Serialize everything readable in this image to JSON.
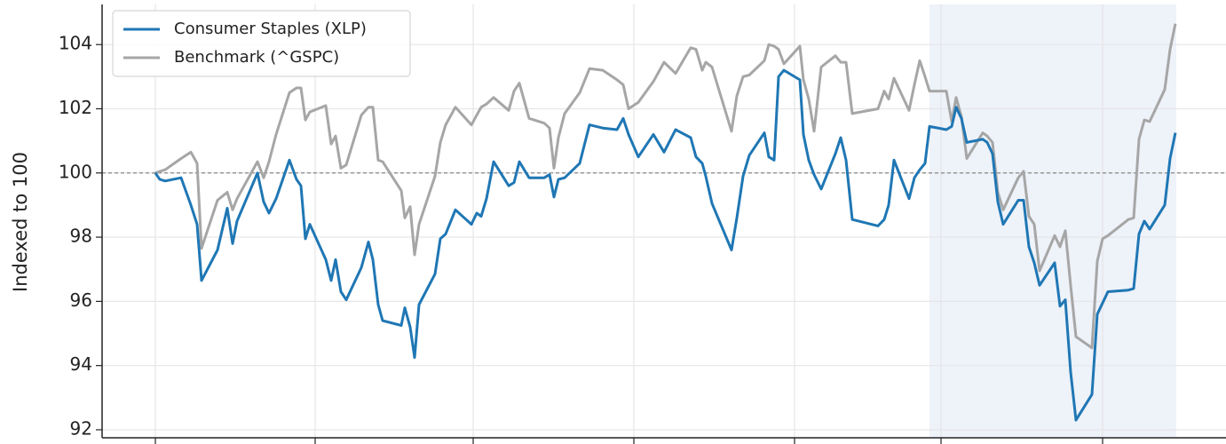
{
  "chart_data": {
    "type": "line",
    "y_label": "Indexed to 100",
    "x": [
      0,
      5,
      11,
      29,
      40,
      47,
      52,
      70,
      81,
      87,
      92,
      115,
      122,
      128,
      136,
      151,
      159,
      164,
      169,
      174,
      192,
      198,
      203,
      209,
      215,
      232,
      240,
      245,
      251,
      256,
      277,
      281,
      287,
      292,
      297,
      315,
      321,
      327,
      338,
      356,
      362,
      367,
      373,
      381,
      398,
      404,
      410,
      421,
      438,
      444,
      449,
      454,
      461,
      478,
      489,
      504,
      520,
      527,
      533,
      544,
      561,
      573,
      586,
      603,
      609,
      616,
      620,
      627,
      649,
      655,
      662,
      669,
      686,
      691,
      697,
      702,
      708,
      726,
      730,
      736,
      742,
      750,
      766,
      772,
      778,
      785,
      814,
      821,
      826,
      832,
      849,
      855,
      861,
      867,
      872,
      891,
      897,
      902,
      908,
      914,
      932,
      937,
      943,
      949,
      955,
      972,
      978,
      984,
      990,
      996,
      1013,
      1019,
      1025,
      1031,
      1037,
      1055,
      1061,
      1067,
      1073,
      1096,
      1102,
      1108,
      1114,
      1120,
      1137,
      1143,
      1149
    ],
    "series": [
      {
        "name": "Consumer Staples (XLP)",
        "color": "#1f77b4",
        "values": [
          100.0,
          99.8,
          99.75,
          99.85,
          99.0,
          98.4,
          96.65,
          97.6,
          98.9,
          97.8,
          98.5,
          100.0,
          99.1,
          98.75,
          99.2,
          100.4,
          99.8,
          99.6,
          97.95,
          98.4,
          97.3,
          96.65,
          97.3,
          96.3,
          96.05,
          97.05,
          97.85,
          97.3,
          95.9,
          95.4,
          95.25,
          95.8,
          95.2,
          94.25,
          95.9,
          96.85,
          97.95,
          98.1,
          98.85,
          98.4,
          98.75,
          98.65,
          99.2,
          100.35,
          99.6,
          99.7,
          100.35,
          99.85,
          99.85,
          99.95,
          99.25,
          99.8,
          99.85,
          100.3,
          101.5,
          101.4,
          101.35,
          101.7,
          101.2,
          100.5,
          101.2,
          100.65,
          101.35,
          101.1,
          100.5,
          100.3,
          99.9,
          99.05,
          97.6,
          98.6,
          99.9,
          100.55,
          101.25,
          100.5,
          100.4,
          103.0,
          103.2,
          102.9,
          101.2,
          100.4,
          99.95,
          99.5,
          100.6,
          101.1,
          100.4,
          98.55,
          98.35,
          98.55,
          99.0,
          100.4,
          99.2,
          99.85,
          100.1,
          100.3,
          101.45,
          101.35,
          101.45,
          102.05,
          101.7,
          100.95,
          101.05,
          100.95,
          100.6,
          99.1,
          98.4,
          99.15,
          99.15,
          97.7,
          97.2,
          96.5,
          97.2,
          95.85,
          96.05,
          93.8,
          92.3,
          93.1,
          95.6,
          95.95,
          96.3,
          96.35,
          96.4,
          98.1,
          98.5,
          98.25,
          99.0,
          100.45,
          101.25
        ]
      },
      {
        "name": "Benchmark (^GSPC)",
        "color": "#a6a6a6",
        "values": [
          100.0,
          100.05,
          100.1,
          100.45,
          100.65,
          100.3,
          97.65,
          99.15,
          99.4,
          98.85,
          99.2,
          100.35,
          99.85,
          100.35,
          101.2,
          102.5,
          102.65,
          102.65,
          101.65,
          101.9,
          102.1,
          100.9,
          101.15,
          100.15,
          100.25,
          101.8,
          102.05,
          102.05,
          100.4,
          100.35,
          99.45,
          98.6,
          98.95,
          97.45,
          98.4,
          99.9,
          100.95,
          101.5,
          102.05,
          101.5,
          101.8,
          102.05,
          102.15,
          102.35,
          101.95,
          102.55,
          102.8,
          101.7,
          101.55,
          101.4,
          100.15,
          101.1,
          101.85,
          102.5,
          103.25,
          103.2,
          102.9,
          102.75,
          102.0,
          102.2,
          102.85,
          103.45,
          103.1,
          103.9,
          103.85,
          103.2,
          103.45,
          103.3,
          101.3,
          102.4,
          103.0,
          103.05,
          103.5,
          104.0,
          103.95,
          103.85,
          103.4,
          103.95,
          102.9,
          102.3,
          101.3,
          103.3,
          103.65,
          103.45,
          103.45,
          101.85,
          102.0,
          102.55,
          102.3,
          102.95,
          101.95,
          102.75,
          103.5,
          103.0,
          102.55,
          102.55,
          101.6,
          102.35,
          101.75,
          100.45,
          101.25,
          101.15,
          100.95,
          99.4,
          98.85,
          99.85,
          100.05,
          98.65,
          98.4,
          96.95,
          98.05,
          97.7,
          98.2,
          96.5,
          94.9,
          94.55,
          97.25,
          97.95,
          98.05,
          98.55,
          98.6,
          101.05,
          101.65,
          101.6,
          102.6,
          103.85,
          104.65
        ]
      }
    ],
    "xlim": [
      -60,
      1206
    ],
    "xticks": [
      0,
      180,
      358,
      539,
      720,
      885,
      1067
    ],
    "ylim": [
      91.75,
      105.25
    ],
    "yticks": [
      92,
      94,
      96,
      98,
      100,
      102,
      104
    ],
    "reference_line": 100,
    "highlight_xrange": [
      872,
      1150
    ],
    "grid": true,
    "legend": "upper-left"
  }
}
